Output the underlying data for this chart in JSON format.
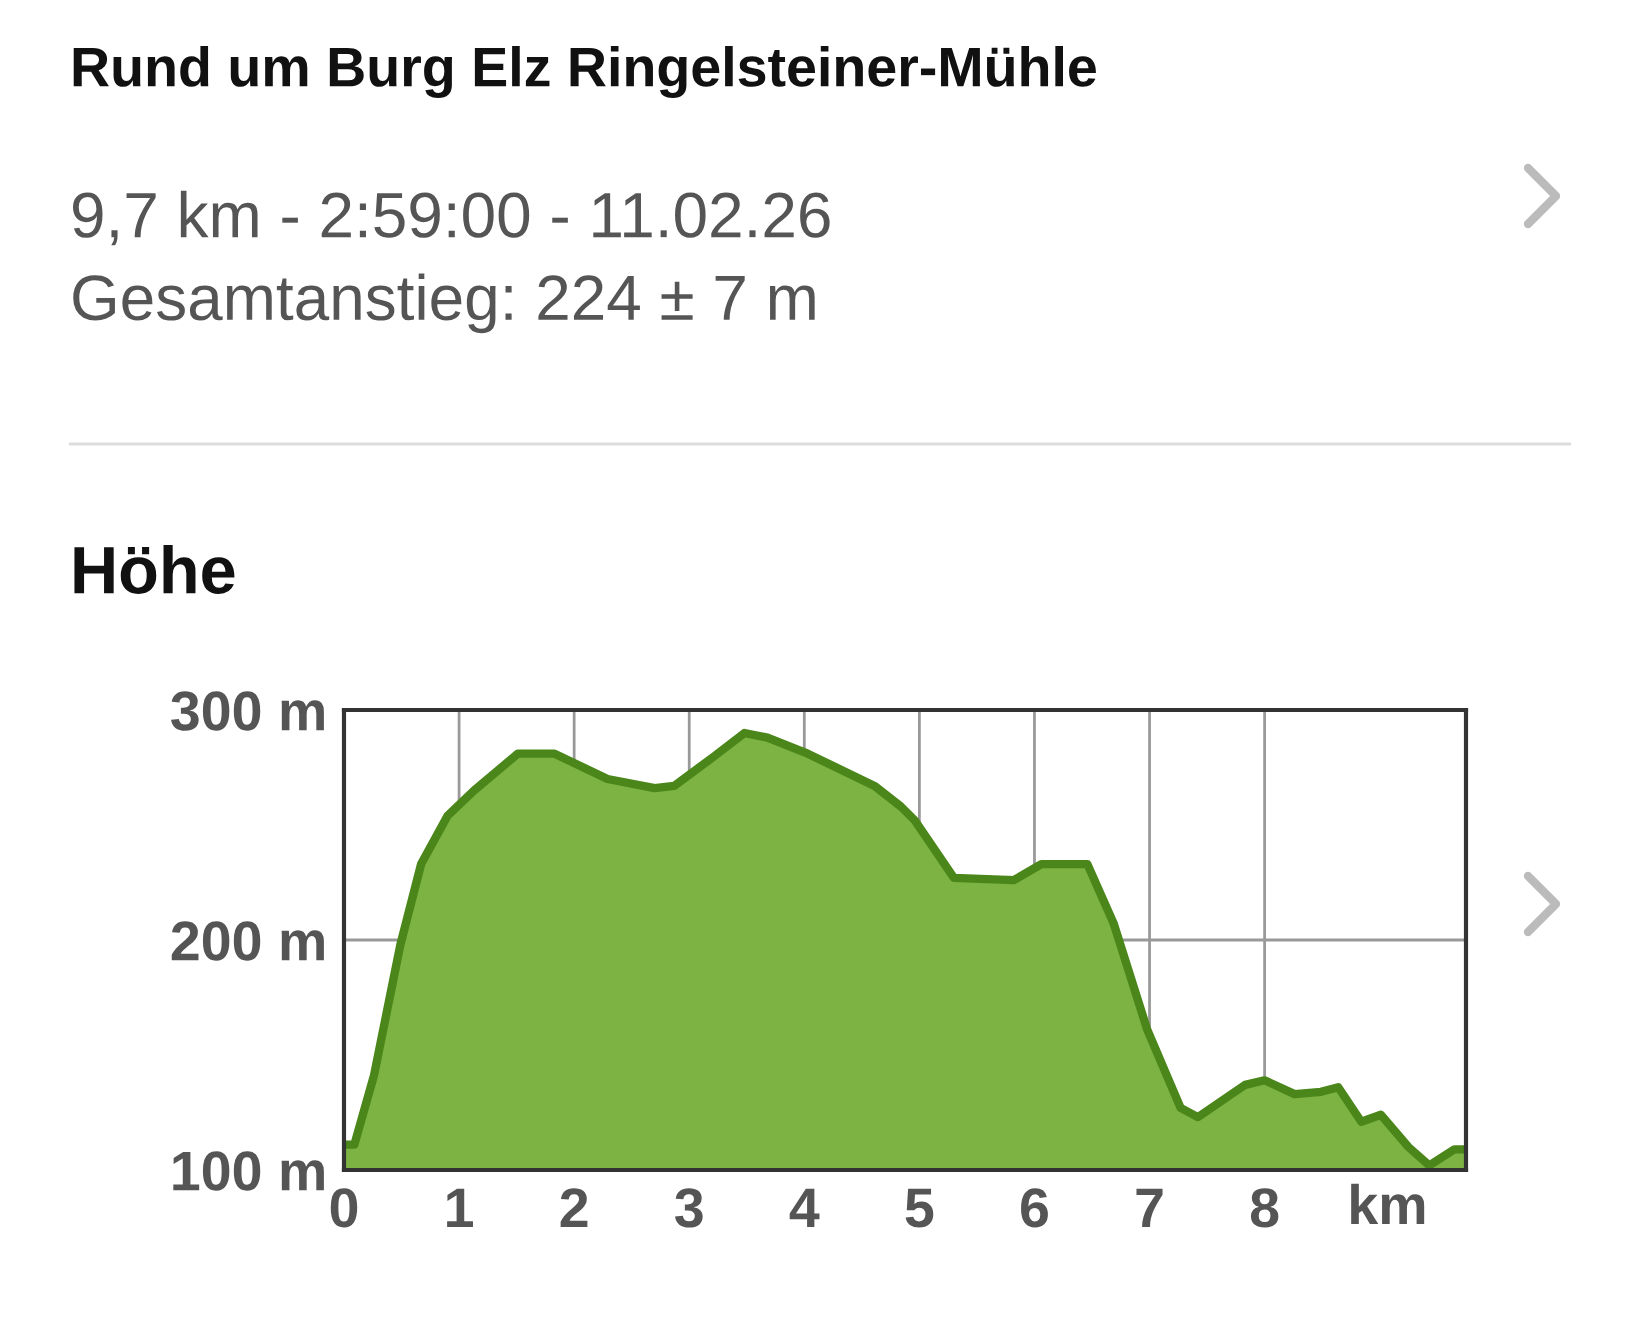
{
  "chart_data": {
    "type": "area",
    "title": "Rund um Burg Elz Ringelsteiner-Mühle",
    "subtitle": "9,7 km - 2:59:00 - 11.02.26\nGesamtanstieg: 224 ± 7 m",
    "annotations": [
      "Höhe"
    ],
    "xlabel": "km",
    "x": [
      0,
      0.09,
      0.26,
      0.49,
      0.67,
      0.9,
      1.13,
      1.51,
      1.83,
      2.29,
      2.7,
      2.87,
      3.22,
      3.48,
      3.68,
      4.03,
      4.61,
      4.84,
      4.96,
      5.3,
      5.82,
      6.06,
      6.46,
      6.69,
      6.98,
      7.27,
      7.42,
      7.83,
      8.0,
      8.26,
      8.49,
      8.64,
      8.84,
      9.01,
      9.25,
      9.43,
      9.65,
      9.74
    ],
    "series": [
      {
        "color": "#7cb342",
        "values": [
          111,
          111,
          141,
          198,
          233,
          254,
          265,
          281,
          281,
          270,
          266,
          267,
          280,
          290,
          288,
          281,
          267,
          258,
          252,
          227,
          226,
          233,
          233,
          207,
          161,
          127,
          123,
          137,
          139,
          133,
          134,
          136,
          121,
          124,
          110,
          102,
          109,
          109
        ]
      }
    ],
    "xlim": [
      0,
      9.75
    ],
    "xticks": [
      0,
      1,
      2,
      3,
      4,
      5,
      6,
      7,
      8
    ],
    "ylim": [
      100,
      300
    ],
    "yticks": [
      {
        "value": 100,
        "label": "100 m"
      },
      {
        "value": 200,
        "label": "200 m"
      },
      {
        "value": 300,
        "label": "300 m"
      }
    ],
    "grid": true,
    "legend": false
  }
}
